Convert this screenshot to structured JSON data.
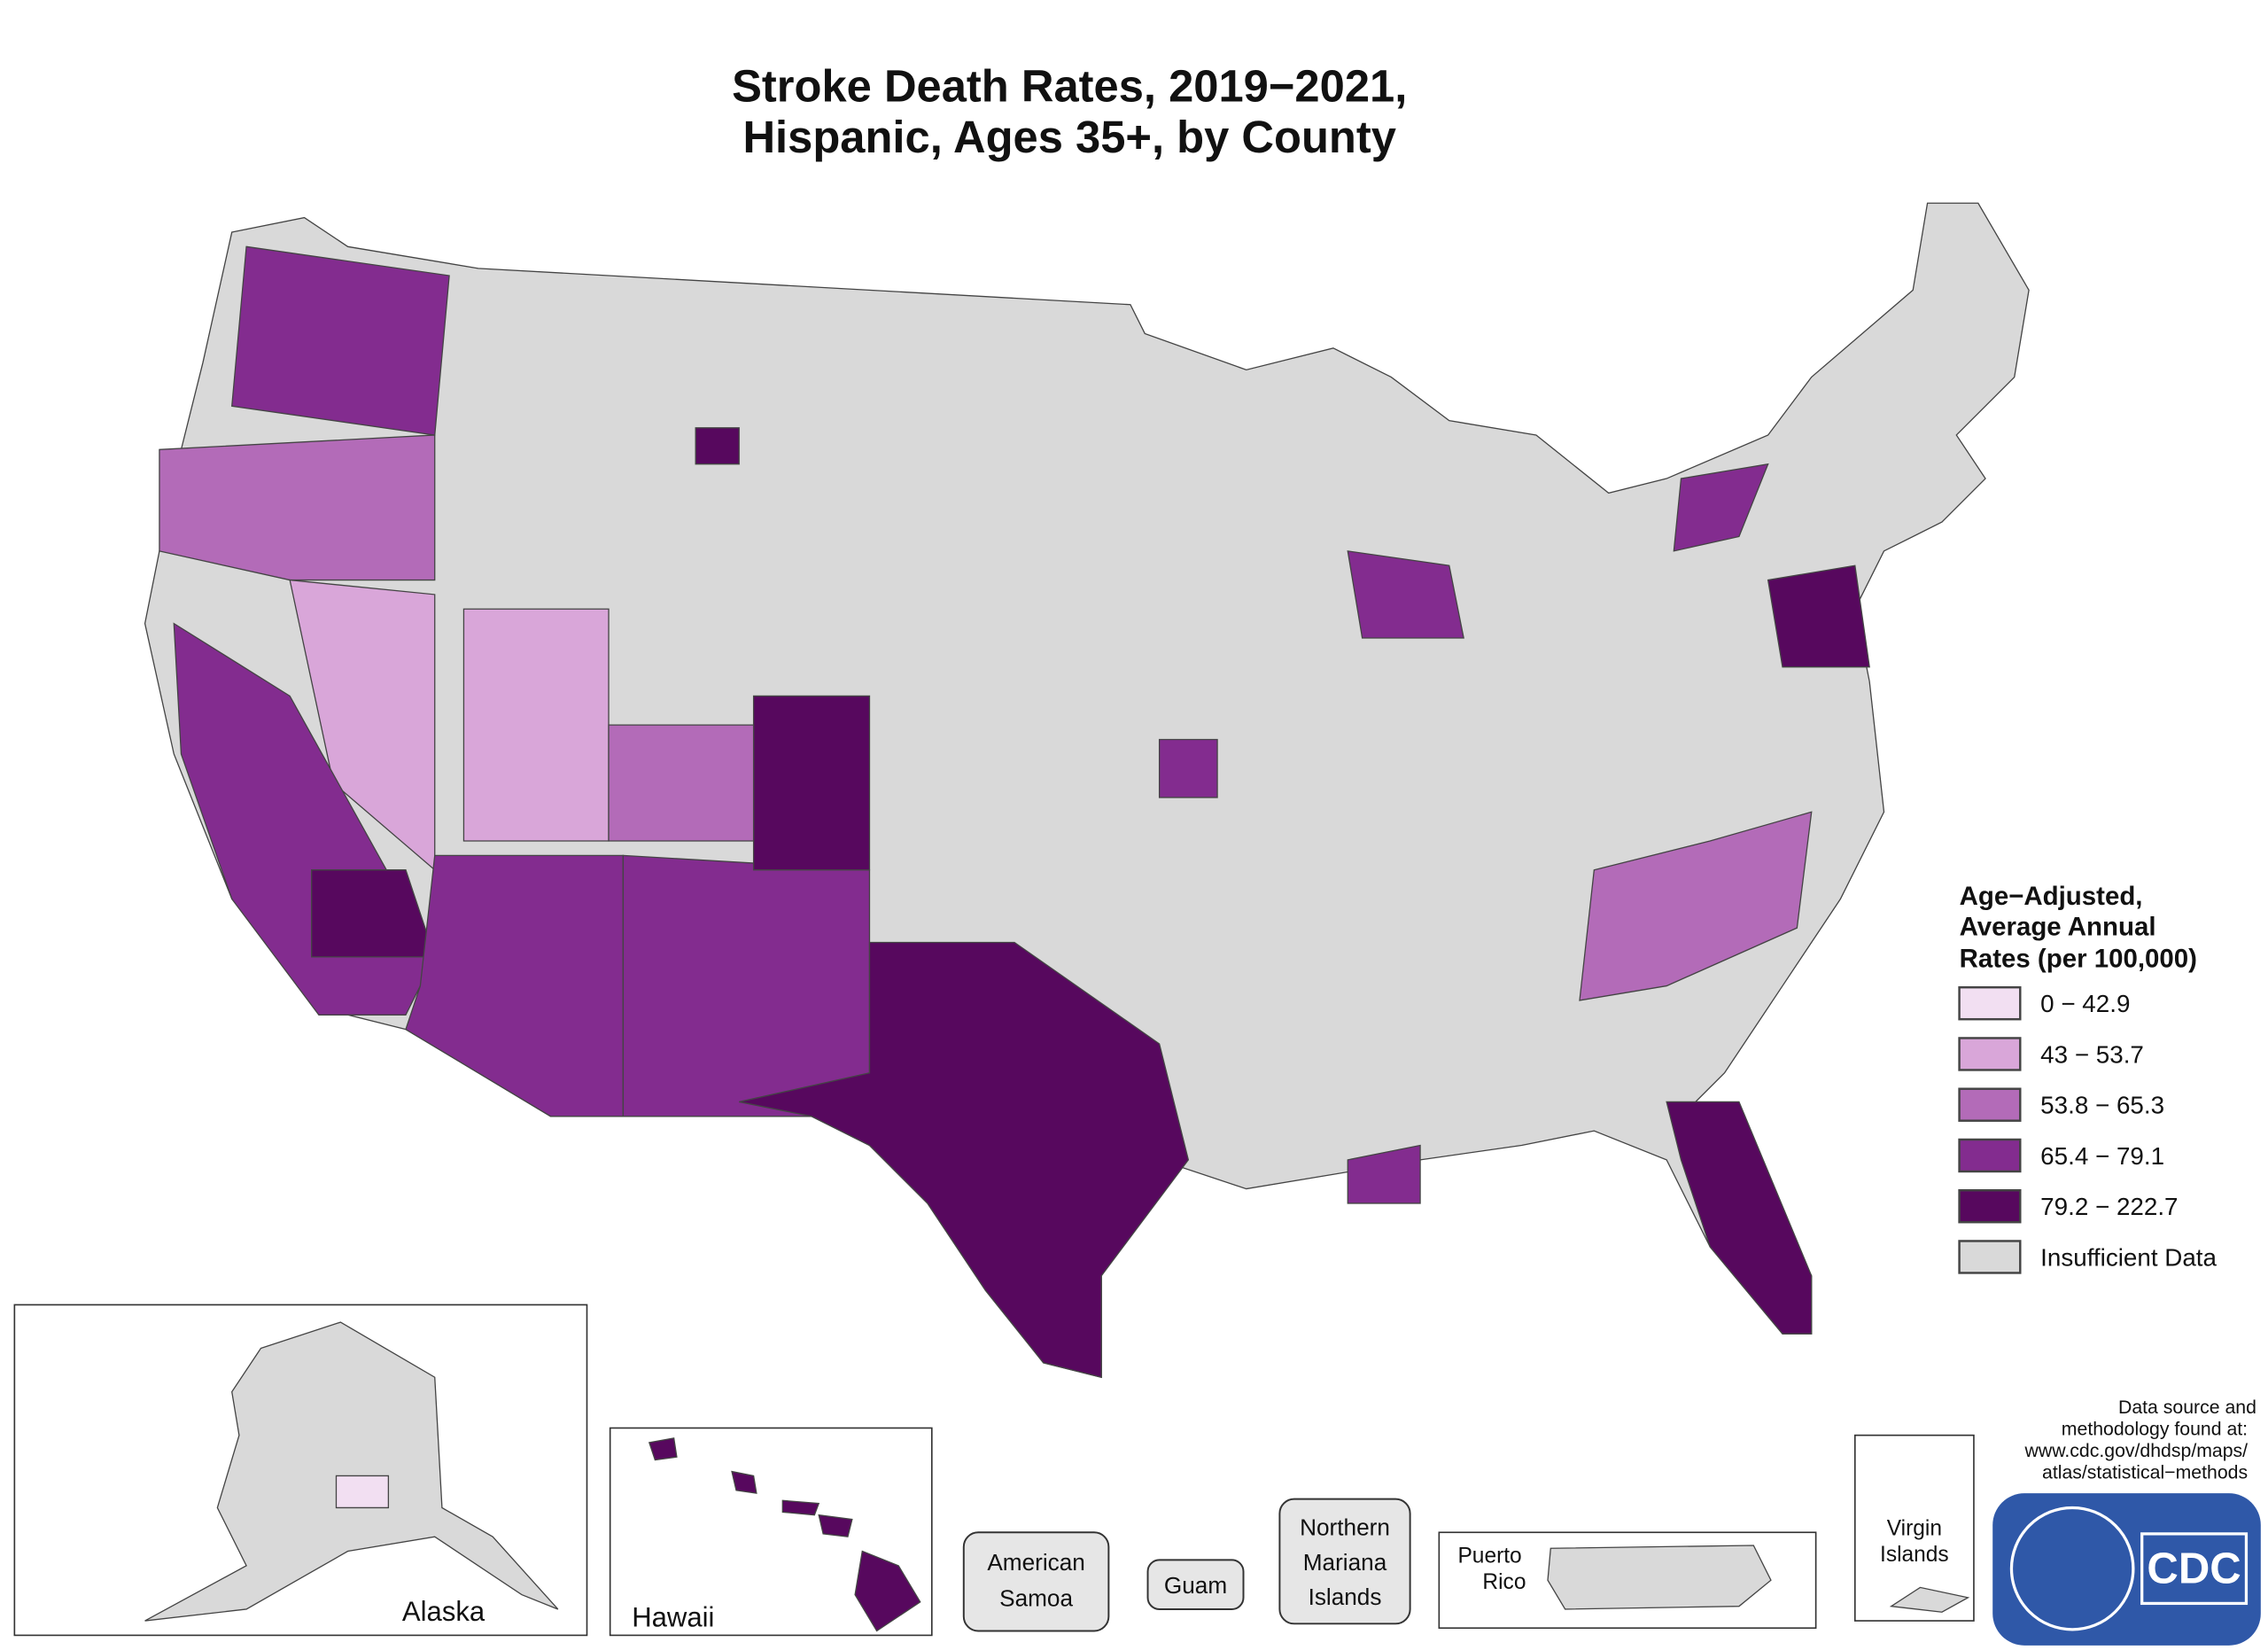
{
  "title": [
    "Stroke Death Rates, 2019−2021,",
    "Hispanic, Ages 35+, by County"
  ],
  "legend": {
    "title": [
      "Age−Adjusted,",
      "Average Annual",
      "Rates (per 100,000)"
    ],
    "items": [
      {
        "label": "0 − 42.9",
        "color": "#f2dff2"
      },
      {
        "label": "43 − 53.7",
        "color": "#d9a6d9"
      },
      {
        "label": "53.8 − 65.3",
        "color": "#b36bb8"
      },
      {
        "label": "65.4 − 79.1",
        "color": "#832c8f"
      },
      {
        "label": "79.2 − 222.7",
        "color": "#57085e"
      },
      {
        "label": "Insufficient Data",
        "color": "#d9d9d9"
      }
    ]
  },
  "insets": {
    "alaska": "Alaska",
    "hawaii": "Hawaii",
    "american_samoa": [
      "American",
      "Samoa"
    ],
    "guam": "Guam",
    "northern_mariana": [
      "Northern",
      "Mariana",
      "Islands"
    ],
    "puerto_rico": [
      "Puerto",
      "Rico"
    ],
    "virgin_islands": [
      "Virgin",
      "Islands"
    ]
  },
  "source": [
    "Data source and",
    "methodology found at:",
    "www.cdc.gov/dhdsp/maps/",
    "atlas/statistical−methods"
  ],
  "logo": "CDC"
}
